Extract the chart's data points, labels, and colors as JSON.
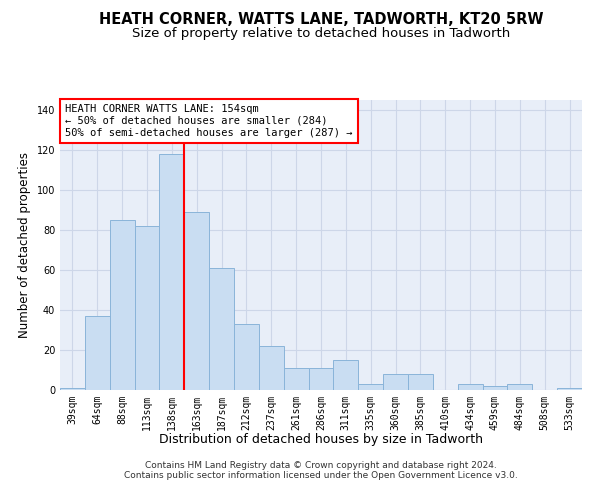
{
  "title": "HEATH CORNER, WATTS LANE, TADWORTH, KT20 5RW",
  "subtitle": "Size of property relative to detached houses in Tadworth",
  "xlabel": "Distribution of detached houses by size in Tadworth",
  "ylabel": "Number of detached properties",
  "categories": [
    "39sqm",
    "64sqm",
    "88sqm",
    "113sqm",
    "138sqm",
    "163sqm",
    "187sqm",
    "212sqm",
    "237sqm",
    "261sqm",
    "286sqm",
    "311sqm",
    "335sqm",
    "360sqm",
    "385sqm",
    "410sqm",
    "434sqm",
    "459sqm",
    "484sqm",
    "508sqm",
    "533sqm"
  ],
  "values": [
    1,
    37,
    85,
    82,
    118,
    89,
    61,
    33,
    22,
    11,
    11,
    15,
    3,
    8,
    8,
    0,
    3,
    2,
    3,
    0,
    1
  ],
  "bar_color": "#c9ddf2",
  "bar_edge_color": "#8ab4d9",
  "grid_color": "#cdd6e8",
  "background_color": "#e8eef8",
  "vline_x_index": 4.5,
  "vline_color": "red",
  "annotation_title": "HEATH CORNER WATTS LANE: 154sqm",
  "annotation_line1": "← 50% of detached houses are smaller (284)",
  "annotation_line2": "50% of semi-detached houses are larger (287) →",
  "annotation_box_color": "white",
  "annotation_box_edge": "red",
  "footer_line1": "Contains HM Land Registry data © Crown copyright and database right 2024.",
  "footer_line2": "Contains public sector information licensed under the Open Government Licence v3.0.",
  "ylim": [
    0,
    145
  ],
  "title_fontsize": 10.5,
  "subtitle_fontsize": 9.5,
  "ylabel_fontsize": 8.5,
  "xlabel_fontsize": 9,
  "tick_fontsize": 7,
  "annotation_fontsize": 7.5,
  "footer_fontsize": 6.5
}
